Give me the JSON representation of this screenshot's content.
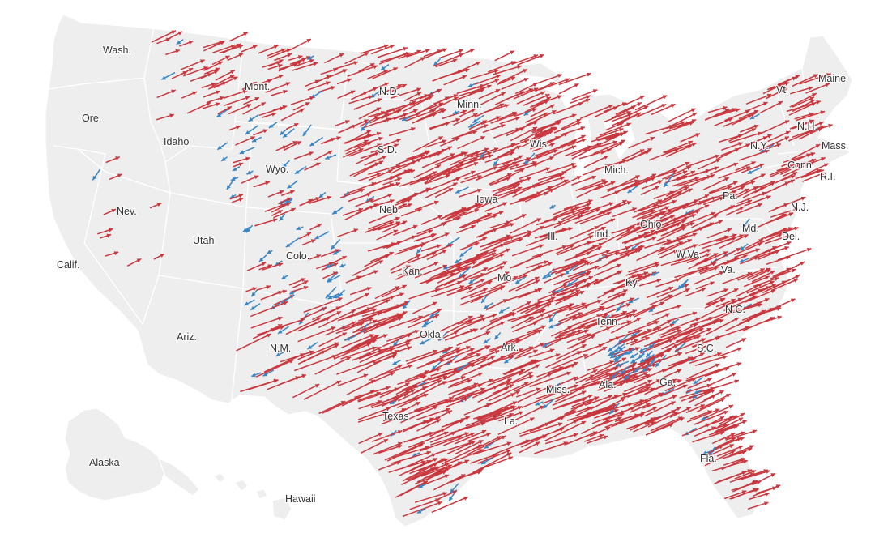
{
  "colors": {
    "land": "#eeeeee",
    "border": "#ffffff",
    "shift_right": "#c9373e",
    "shift_left": "#3a86c4"
  },
  "labels": [
    {
      "id": "wash",
      "text": "Wash."
    },
    {
      "id": "ore",
      "text": "Ore."
    },
    {
      "id": "calif",
      "text": "Calif."
    },
    {
      "id": "idaho",
      "text": "Idaho"
    },
    {
      "id": "nev",
      "text": "Nev."
    },
    {
      "id": "mont",
      "text": "Mont."
    },
    {
      "id": "wyo",
      "text": "Wyo."
    },
    {
      "id": "utah",
      "text": "Utah"
    },
    {
      "id": "ariz",
      "text": "Ariz."
    },
    {
      "id": "colo",
      "text": "Colo."
    },
    {
      "id": "nm",
      "text": "N.M."
    },
    {
      "id": "nd",
      "text": "N.D."
    },
    {
      "id": "sd",
      "text": "S.D."
    },
    {
      "id": "neb",
      "text": "Neb."
    },
    {
      "id": "kan",
      "text": "Kan."
    },
    {
      "id": "okla",
      "text": "Okla."
    },
    {
      "id": "texas",
      "text": "Texas"
    },
    {
      "id": "minn",
      "text": "Minn."
    },
    {
      "id": "iowa",
      "text": "Iowa"
    },
    {
      "id": "mo",
      "text": "Mo."
    },
    {
      "id": "ark",
      "text": "Ark."
    },
    {
      "id": "la",
      "text": "La."
    },
    {
      "id": "wis",
      "text": "Wis."
    },
    {
      "id": "ill",
      "text": "Ill."
    },
    {
      "id": "miss",
      "text": "Miss."
    },
    {
      "id": "mich",
      "text": "Mich."
    },
    {
      "id": "ind",
      "text": "Ind."
    },
    {
      "id": "ohio",
      "text": "Ohio"
    },
    {
      "id": "ky",
      "text": "Ky."
    },
    {
      "id": "tenn",
      "text": "Tenn."
    },
    {
      "id": "ala",
      "text": "Ala."
    },
    {
      "id": "ga",
      "text": "Ga."
    },
    {
      "id": "fla",
      "text": "Fla."
    },
    {
      "id": "sc",
      "text": "S.C."
    },
    {
      "id": "nc",
      "text": "N.C."
    },
    {
      "id": "va",
      "text": "Va."
    },
    {
      "id": "wva",
      "text": "W.Va."
    },
    {
      "id": "pa",
      "text": "Pa."
    },
    {
      "id": "md",
      "text": "Md."
    },
    {
      "id": "del",
      "text": "Del."
    },
    {
      "id": "nj",
      "text": "N.J."
    },
    {
      "id": "ny",
      "text": "N.Y."
    },
    {
      "id": "conn",
      "text": "Conn."
    },
    {
      "id": "ri",
      "text": "R.I."
    },
    {
      "id": "mass",
      "text": "Mass."
    },
    {
      "id": "vt",
      "text": "Vt."
    },
    {
      "id": "nh",
      "text": "N.H."
    },
    {
      "id": "maine",
      "text": "Maine"
    },
    {
      "id": "alaska",
      "text": "Alaska"
    },
    {
      "id": "hawaii",
      "text": "Hawaii"
    }
  ]
}
